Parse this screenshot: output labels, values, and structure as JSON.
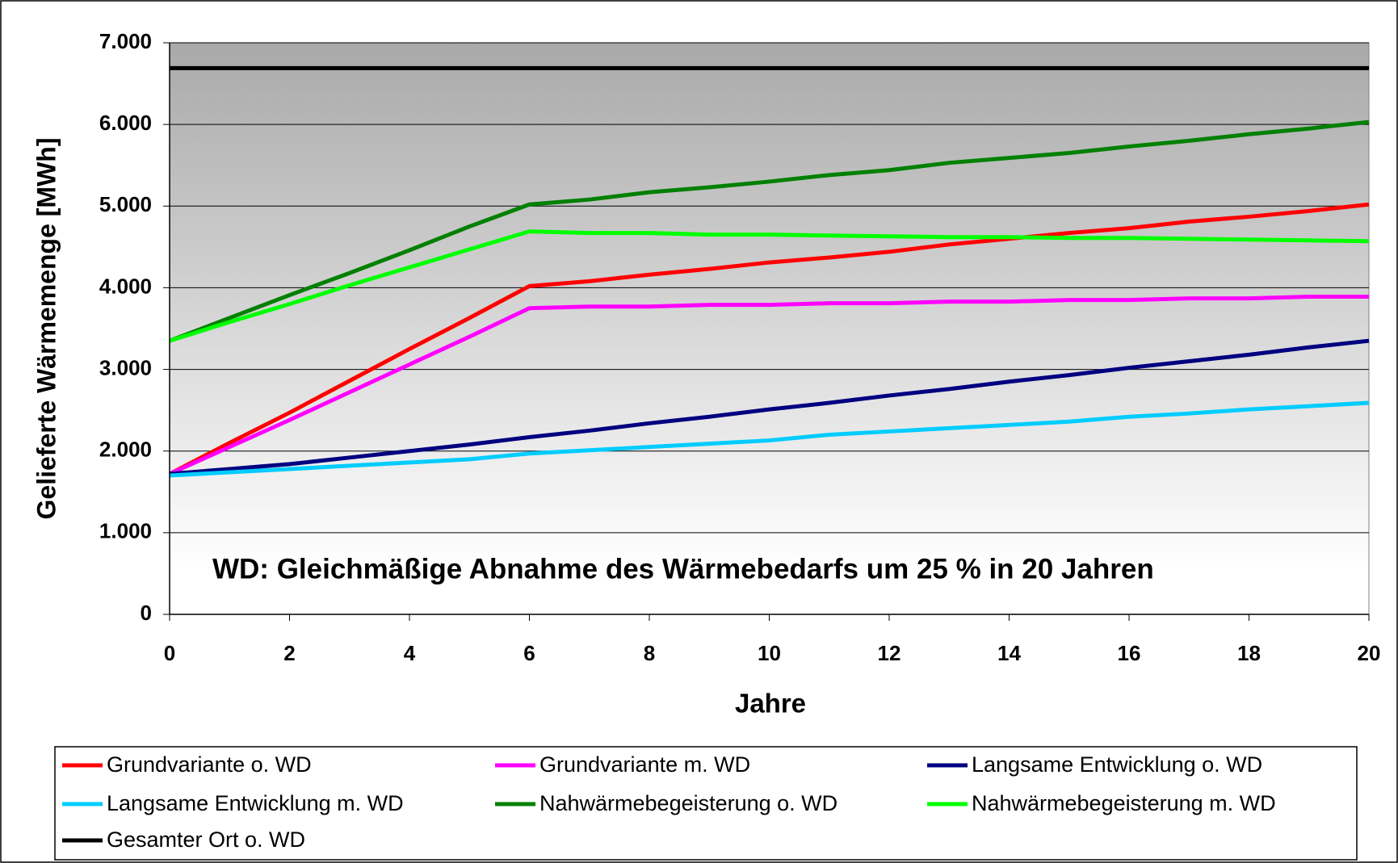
{
  "chart_data": {
    "type": "line",
    "annotation": "WD: Gleichmäßige Abnahme des Wärmebedarfs um 25 % in 20 Jahren",
    "xlabel": "Jahre",
    "ylabel": "Gelieferte Wärmemenge [MWh]",
    "x": [
      0,
      1,
      2,
      3,
      4,
      5,
      6,
      7,
      8,
      9,
      10,
      11,
      12,
      13,
      14,
      15,
      16,
      17,
      18,
      19,
      20
    ],
    "series": [
      {
        "name": "Grundvariante o. WD",
        "color": "#ff0000",
        "values": [
          1720,
          2100,
          2470,
          2860,
          3250,
          3630,
          4020,
          4080,
          4160,
          4230,
          4310,
          4370,
          4440,
          4530,
          4600,
          4670,
          4730,
          4810,
          4870,
          4940,
          5020
        ]
      },
      {
        "name": "Grundvariante m. WD",
        "color": "#ff00ff",
        "values": [
          1720,
          2050,
          2380,
          2720,
          3060,
          3400,
          3750,
          3770,
          3770,
          3790,
          3790,
          3810,
          3810,
          3830,
          3830,
          3850,
          3850,
          3870,
          3870,
          3890,
          3890
        ]
      },
      {
        "name": "Langsame Entwicklung o. WD",
        "color": "#000080",
        "values": [
          1720,
          1780,
          1840,
          1920,
          2000,
          2080,
          2170,
          2250,
          2340,
          2420,
          2510,
          2590,
          2680,
          2760,
          2850,
          2930,
          3020,
          3100,
          3180,
          3270,
          3350
        ]
      },
      {
        "name": "Langsame Entwicklung m. WD",
        "color": "#00ccff",
        "values": [
          1700,
          1740,
          1780,
          1820,
          1860,
          1900,
          1970,
          2010,
          2050,
          2090,
          2130,
          2200,
          2240,
          2280,
          2320,
          2360,
          2420,
          2460,
          2510,
          2550,
          2590
        ]
      },
      {
        "name": "Nahwärmebegeisterung o. WD",
        "color": "#008000",
        "values": [
          3350,
          3630,
          3910,
          4180,
          4460,
          4750,
          5020,
          5080,
          5170,
          5230,
          5300,
          5380,
          5440,
          5530,
          5590,
          5650,
          5730,
          5800,
          5880,
          5950,
          6030
        ]
      },
      {
        "name": "Nahwärmebegeisterung m. WD",
        "color": "#00ff00",
        "values": [
          3350,
          3580,
          3800,
          4030,
          4250,
          4470,
          4690,
          4670,
          4670,
          4650,
          4650,
          4640,
          4630,
          4620,
          4620,
          4610,
          4610,
          4600,
          4590,
          4580,
          4570
        ]
      },
      {
        "name": "Gesamter Ort o. WD",
        "color": "#000000",
        "values": [
          6690,
          6690,
          6690,
          6690,
          6690,
          6690,
          6690,
          6690,
          6690,
          6690,
          6690,
          6690,
          6690,
          6690,
          6690,
          6690,
          6690,
          6690,
          6690,
          6690,
          6690
        ]
      }
    ],
    "xlim": [
      0,
      20
    ],
    "xticks": [
      0,
      2,
      4,
      6,
      8,
      10,
      12,
      14,
      16,
      18,
      20
    ],
    "ylim": [
      0,
      7000
    ],
    "yticks": [
      0,
      {
        "value": 1000,
        "label": "1.000"
      },
      {
        "value": 2000,
        "label": "2.000"
      },
      {
        "value": 3000,
        "label": "3.000"
      },
      {
        "value": 4000,
        "label": "4.000"
      },
      {
        "value": 5000,
        "label": "5.000"
      },
      {
        "value": 6000,
        "label": "6.000"
      },
      {
        "value": 7000,
        "label": "7.000"
      }
    ],
    "grid": true,
    "legend": "bottom"
  }
}
